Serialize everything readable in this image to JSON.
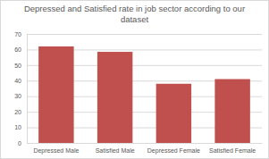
{
  "chart_data": {
    "type": "bar",
    "title": "Depressed and Satisfied rate in job sector according to our dataset",
    "categories": [
      "Depressed Male",
      "Satisfied Male",
      "Depressed Female",
      "Satisfied Female"
    ],
    "values": [
      62,
      58.5,
      38,
      41
    ],
    "color": "#c0504d",
    "ylim": [
      0,
      70
    ],
    "yticks": [
      0,
      10,
      20,
      30,
      40,
      50,
      60,
      70
    ],
    "grid": true
  }
}
